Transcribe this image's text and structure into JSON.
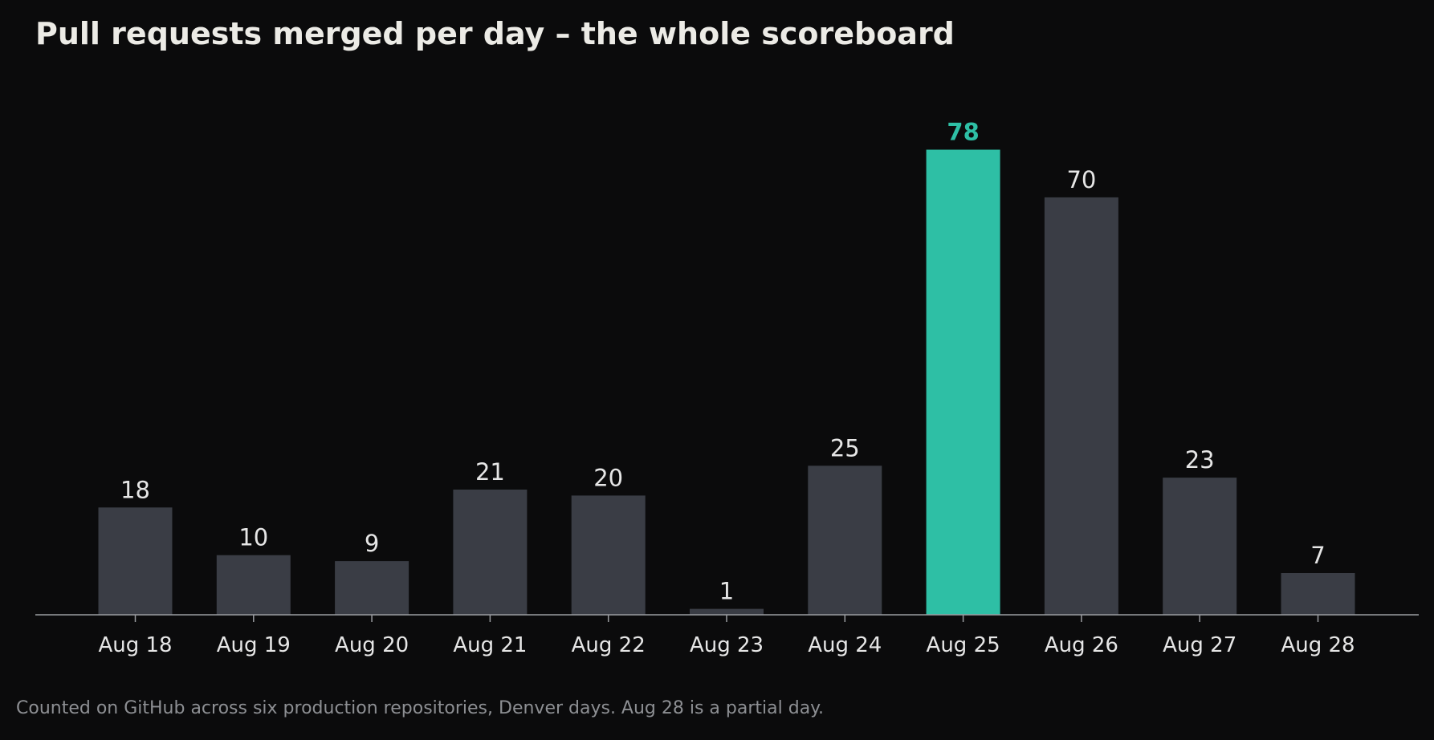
{
  "header": {
    "title": "Pull requests merged per day – the whole scoreboard"
  },
  "footer": {
    "note": "Counted on GitHub across six production repositories, Denver days. Aug 28 is a partial day."
  },
  "colors": {
    "background": "#0b0b0c",
    "bar": "#3a3d45",
    "highlight": "#2ebfa5",
    "axis": "#9a9ca0",
    "text": "#e6e6e6"
  },
  "chart_data": {
    "type": "bar",
    "categories": [
      "Aug 18",
      "Aug 19",
      "Aug 20",
      "Aug 21",
      "Aug 22",
      "Aug 23",
      "Aug 24",
      "Aug 25",
      "Aug 26",
      "Aug 27",
      "Aug 28"
    ],
    "values": [
      18,
      10,
      9,
      21,
      20,
      1,
      25,
      78,
      70,
      23,
      7
    ],
    "highlight_category": "Aug 25",
    "title": "Pull requests merged per day – the whole scoreboard",
    "xlabel": "",
    "ylabel": "",
    "ylim": [
      0,
      80
    ],
    "grid": false,
    "data_labels": true
  }
}
